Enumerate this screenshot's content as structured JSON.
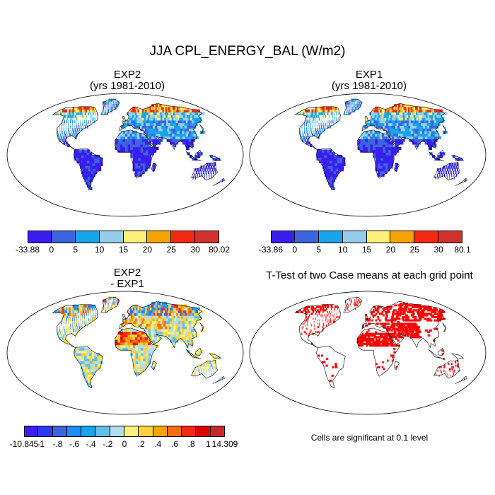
{
  "figure_title": "JJA CPL_ENERGY_BAL (W/m2)",
  "panels": {
    "exp2": {
      "title_line1": "EXP2",
      "title_line2": "(yrs 1981-2010)"
    },
    "exp1": {
      "title_line1": "EXP1",
      "title_line2": "(yrs 1981-2010)"
    },
    "diff": {
      "title_line1": "EXP2",
      "title_line2": "- EXP1"
    },
    "ttest": {
      "title": "T-Test of two Case means at each grid point",
      "note": "Cells are significant at 0.1 level"
    }
  },
  "chart_data": [
    {
      "type": "heatmap",
      "panel": "exp2",
      "colorbar_labels": [
        "-33.88",
        "0",
        "5",
        "10",
        "15",
        "20",
        "25",
        "30",
        "80.02"
      ],
      "colors": [
        "#3a1ef0",
        "#3c64dc",
        "#16a5eb",
        "#96cdeb",
        "#fcf07a",
        "#f6a400",
        "#f52814",
        "#d2322d"
      ]
    },
    {
      "type": "heatmap",
      "panel": "exp1",
      "colorbar_labels": [
        "-33.86",
        "0",
        "5",
        "10",
        "15",
        "20",
        "25",
        "30",
        "80.1"
      ],
      "colors": [
        "#3a1ef0",
        "#3c64dc",
        "#16a5eb",
        "#96cdeb",
        "#fcf07a",
        "#f6a400",
        "#f52814",
        "#d2322d"
      ]
    },
    {
      "type": "heatmap",
      "panel": "diff",
      "colorbar_labels": [
        "-10.845",
        "-1",
        "-.8",
        "-.6",
        "-.4",
        "-.2",
        "0",
        ".2",
        ".4",
        ".6",
        ".8",
        "1",
        "14.309"
      ],
      "colors": [
        "#3a1ef0",
        "#2b3cf0",
        "#3c64dc",
        "#1e8cf0",
        "#16a5eb",
        "#64bee6",
        "#b4dcf0",
        "#fcf07a",
        "#fad23c",
        "#f6a400",
        "#f56e14",
        "#f52814",
        "#dc0000",
        "#c8282d"
      ]
    },
    {
      "type": "heatmap",
      "panel": "ttest",
      "colors": [
        "#ff0000"
      ]
    }
  ]
}
